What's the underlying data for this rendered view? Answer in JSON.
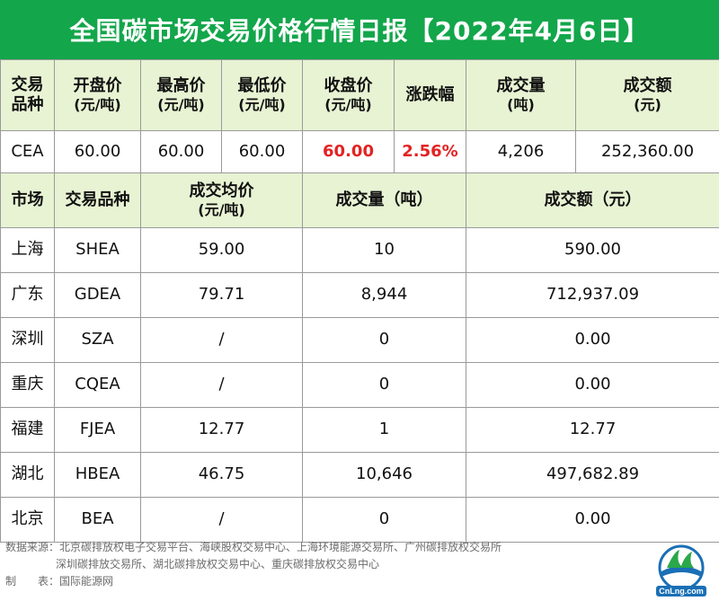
{
  "title": "全国碳市场交易价格行情日报【2022年4月6日】",
  "national": {
    "headers": [
      {
        "l1": "交易",
        "l2": "品种"
      },
      {
        "l1": "开盘价",
        "l2": "(元/吨)"
      },
      {
        "l1": "最高价",
        "l2": "(元/吨)"
      },
      {
        "l1": "最低价",
        "l2": "(元/吨)"
      },
      {
        "l1": "收盘价",
        "l2": "(元/吨)"
      },
      {
        "l1": "涨跌幅",
        "l2": ""
      },
      {
        "l1": "成交量",
        "l2": "(吨)"
      },
      {
        "l1": "成交额",
        "l2": "(元)"
      }
    ],
    "row": [
      "CEA",
      "60.00",
      "60.00",
      "60.00",
      "60.00",
      "2.56%",
      "4,206",
      "252,360.00"
    ],
    "highlight_color": "#e32222"
  },
  "regional": {
    "headers": {
      "market": "市场",
      "product": "交易品种",
      "avg_price_l1": "成交均价",
      "avg_price_l2": "(元/吨)",
      "volume": "成交量（吨）",
      "amount": "成交额（元）"
    },
    "rows": [
      [
        "上海",
        "SHEA",
        "59.00",
        "10",
        "590.00"
      ],
      [
        "广东",
        "GDEA",
        "79.71",
        "8,944",
        "712,937.09"
      ],
      [
        "深圳",
        "SZA",
        "/",
        "0",
        "0.00"
      ],
      [
        "重庆",
        "CQEA",
        "/",
        "0",
        "0.00"
      ],
      [
        "福建",
        "FJEA",
        "12.77",
        "1",
        "12.77"
      ],
      [
        "湖北",
        "HBEA",
        "46.75",
        "10,646",
        "497,682.89"
      ],
      [
        "北京",
        "BEA",
        "/",
        "0",
        "0.00"
      ]
    ]
  },
  "footer": {
    "source_line1": "数据来源：北京碳排放权电子交易平台、海峡股权交易中心、上海环境能源交易所、广州碳排放权交易所",
    "source_line2": "深圳碳排放交易所、湖北碳排放权交易中心、重庆碳排放权交易中心",
    "maker": "制　　表：国际能源网"
  },
  "logo": {
    "text": "CnLng.com"
  },
  "colors": {
    "title_bg": "#13a64b",
    "header_bg": "#e7f3d3"
  }
}
